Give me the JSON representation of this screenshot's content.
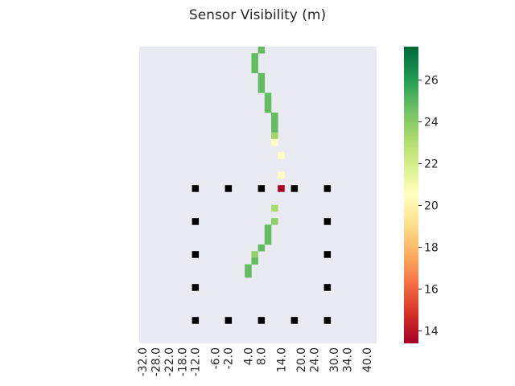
{
  "chart_data": {
    "type": "heatmap",
    "title": "Sensor Visibility (m)",
    "xlabel": "",
    "ylabel": "",
    "x_tick_labels": [
      "-32.0",
      "-28.0",
      "-22.0",
      "-18.0",
      "-12.0",
      "-6.0",
      "-2.0",
      "4.0",
      "8.0",
      "14.0",
      "20.0",
      "24.0",
      "30.0",
      "34.0",
      "40.0"
    ],
    "x_tick_columns": [
      0,
      2,
      4,
      6,
      8,
      11,
      13,
      16,
      18,
      21,
      24,
      26,
      29,
      31,
      34
    ],
    "grid_columns": 36,
    "grid_rows": 45,
    "background_color": "#eaeaf2",
    "obstacle_color": "#000000",
    "colorbar": {
      "vmin": 13.4,
      "vmax": 27.6,
      "ticks": [
        14,
        16,
        18,
        20,
        22,
        24,
        26
      ],
      "colormap": "RdYlGn"
    },
    "cells": [
      {
        "col": 18,
        "row": 0,
        "value": 24.8
      },
      {
        "col": 17,
        "row": 1,
        "value": 24.8
      },
      {
        "col": 17,
        "row": 2,
        "value": 24.8
      },
      {
        "col": 17,
        "row": 3,
        "value": 24.8
      },
      {
        "col": 18,
        "row": 4,
        "value": 24.8
      },
      {
        "col": 18,
        "row": 5,
        "value": 24.8
      },
      {
        "col": 18,
        "row": 6,
        "value": 24.8
      },
      {
        "col": 19,
        "row": 7,
        "value": 24.8
      },
      {
        "col": 19,
        "row": 8,
        "value": 24.8
      },
      {
        "col": 19,
        "row": 9,
        "value": 24.8
      },
      {
        "col": 20,
        "row": 10,
        "value": 24.8
      },
      {
        "col": 20,
        "row": 11,
        "value": 24.8
      },
      {
        "col": 20,
        "row": 12,
        "value": 24.8
      },
      {
        "col": 20,
        "row": 13,
        "value": 23.5
      },
      {
        "col": 20,
        "row": 14,
        "value": 20.5
      },
      {
        "col": 21,
        "row": 16,
        "value": 20.5
      },
      {
        "col": 21,
        "row": 19,
        "value": 20.5
      },
      {
        "col": 21,
        "row": 21,
        "value": 13.5
      },
      {
        "col": 20,
        "row": 24,
        "value": 23.2
      },
      {
        "col": 20,
        "row": 26,
        "value": 23.8
      },
      {
        "col": 19,
        "row": 27,
        "value": 24.8
      },
      {
        "col": 19,
        "row": 28,
        "value": 24.8
      },
      {
        "col": 19,
        "row": 29,
        "value": 24.8
      },
      {
        "col": 18,
        "row": 30,
        "value": 24.8
      },
      {
        "col": 17,
        "row": 31,
        "value": 23.8
      },
      {
        "col": 17,
        "row": 32,
        "value": 24.8
      },
      {
        "col": 16,
        "row": 33,
        "value": 24.8
      },
      {
        "col": 16,
        "row": 34,
        "value": 24.8
      }
    ],
    "obstacles": [
      {
        "col": 8,
        "row": 21
      },
      {
        "col": 13,
        "row": 21
      },
      {
        "col": 18,
        "row": 21
      },
      {
        "col": 23,
        "row": 21
      },
      {
        "col": 28,
        "row": 21
      },
      {
        "col": 8,
        "row": 26
      },
      {
        "col": 28,
        "row": 26
      },
      {
        "col": 8,
        "row": 31
      },
      {
        "col": 28,
        "row": 31
      },
      {
        "col": 8,
        "row": 36
      },
      {
        "col": 28,
        "row": 36
      },
      {
        "col": 8,
        "row": 41
      },
      {
        "col": 13,
        "row": 41
      },
      {
        "col": 18,
        "row": 41
      },
      {
        "col": 23,
        "row": 41
      },
      {
        "col": 28,
        "row": 41
      }
    ]
  }
}
